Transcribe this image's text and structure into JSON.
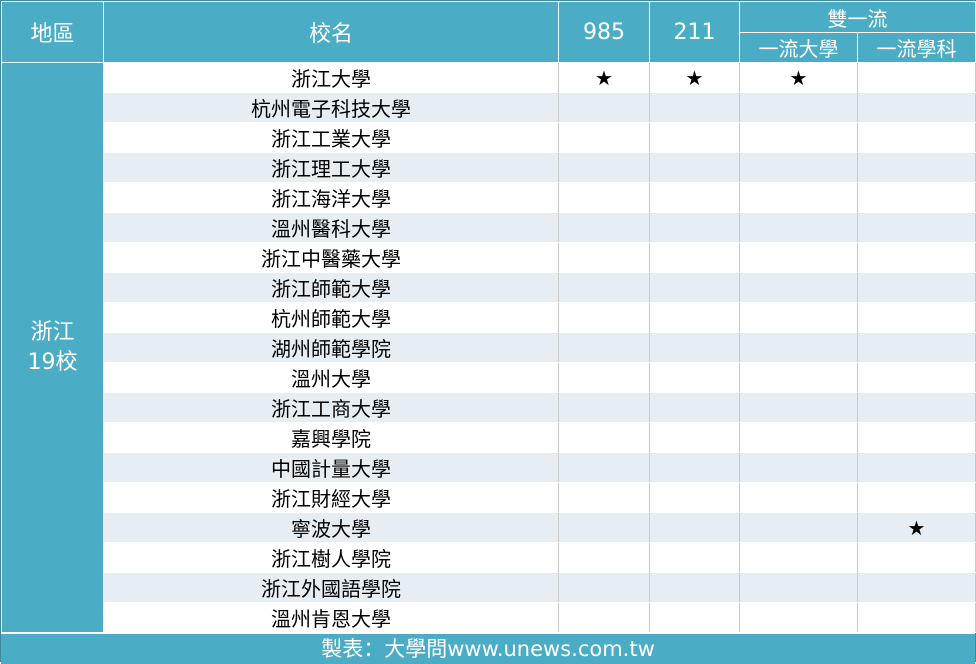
{
  "header": {
    "region": "地區",
    "school": "校名",
    "c985": "985",
    "c211": "211",
    "double": "雙一流",
    "uni": "一流大學",
    "discipline": "一流學科"
  },
  "region": {
    "province": "浙江",
    "count": "19校"
  },
  "rows": [
    {
      "name": "浙江大學",
      "c985": "★",
      "c211": "★",
      "uni": "★",
      "disc": ""
    },
    {
      "name": "杭州電子科技大學",
      "c985": "",
      "c211": "",
      "uni": "",
      "disc": ""
    },
    {
      "name": "浙江工業大學",
      "c985": "",
      "c211": "",
      "uni": "",
      "disc": ""
    },
    {
      "name": "浙江理工大學",
      "c985": "",
      "c211": "",
      "uni": "",
      "disc": ""
    },
    {
      "name": "浙江海洋大學",
      "c985": "",
      "c211": "",
      "uni": "",
      "disc": ""
    },
    {
      "name": "溫州醫科大學",
      "c985": "",
      "c211": "",
      "uni": "",
      "disc": ""
    },
    {
      "name": "浙江中醫藥大學",
      "c985": "",
      "c211": "",
      "uni": "",
      "disc": ""
    },
    {
      "name": "浙江師範大學",
      "c985": "",
      "c211": "",
      "uni": "",
      "disc": ""
    },
    {
      "name": "杭州師範大學",
      "c985": "",
      "c211": "",
      "uni": "",
      "disc": ""
    },
    {
      "name": "湖州師範學院",
      "c985": "",
      "c211": "",
      "uni": "",
      "disc": ""
    },
    {
      "name": "溫州大學",
      "c985": "",
      "c211": "",
      "uni": "",
      "disc": ""
    },
    {
      "name": "浙江工商大學",
      "c985": "",
      "c211": "",
      "uni": "",
      "disc": ""
    },
    {
      "name": "嘉興學院",
      "c985": "",
      "c211": "",
      "uni": "",
      "disc": ""
    },
    {
      "name": "中國計量大學",
      "c985": "",
      "c211": "",
      "uni": "",
      "disc": ""
    },
    {
      "name": "浙江財經大學",
      "c985": "",
      "c211": "",
      "uni": "",
      "disc": ""
    },
    {
      "name": "寧波大學",
      "c985": "",
      "c211": "",
      "uni": "",
      "disc": "★"
    },
    {
      "name": "浙江樹人學院",
      "c985": "",
      "c211": "",
      "uni": "",
      "disc": ""
    },
    {
      "name": "浙江外國語學院",
      "c985": "",
      "c211": "",
      "uni": "",
      "disc": ""
    },
    {
      "name": "溫州肯恩大學",
      "c985": "",
      "c211": "",
      "uni": "",
      "disc": ""
    }
  ],
  "footer": "製表：大學問www.unews.com.tw"
}
